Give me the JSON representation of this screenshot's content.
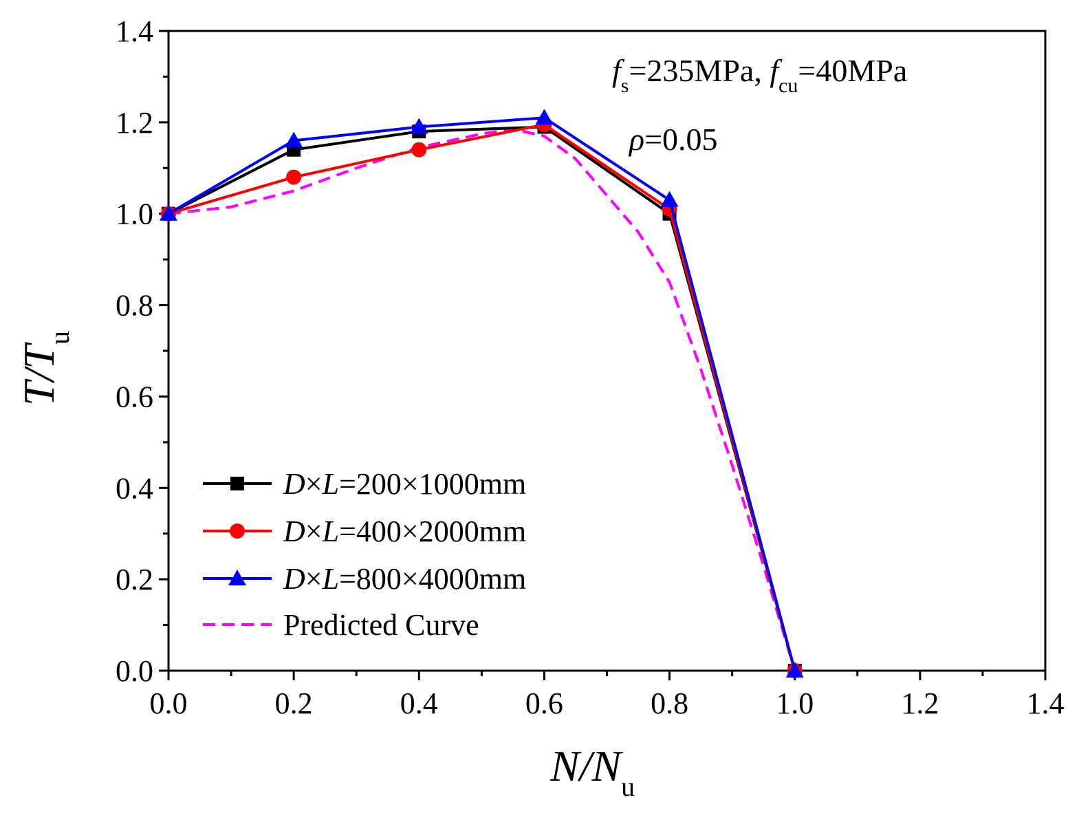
{
  "chart_data": {
    "type": "line",
    "x_axis": {
      "label_main": "N/N",
      "label_sub": "u",
      "range": [
        0,
        1.4
      ],
      "ticks": [
        "0.0",
        "0.2",
        "0.4",
        "0.6",
        "0.8",
        "1.0",
        "1.2",
        "1.4"
      ],
      "tick_values": [
        0,
        0.2,
        0.4,
        0.6,
        0.8,
        1.0,
        1.2,
        1.4
      ],
      "minor_step": 0.1
    },
    "y_axis": {
      "label_main": "T/T",
      "label_sub": "u",
      "range": [
        0,
        1.4
      ],
      "ticks": [
        "0.0",
        "0.2",
        "0.4",
        "0.6",
        "0.8",
        "1.0",
        "1.2",
        "1.4"
      ],
      "tick_values": [
        0,
        0.2,
        0.4,
        0.6,
        0.8,
        1.0,
        1.2,
        1.4
      ],
      "minor_step": 0.1
    },
    "grid": false,
    "legend_position": "bottom-left",
    "annotations": {
      "line1": {
        "f1": "f",
        "s1": "s",
        "eq1": "=235MPa, ",
        "f2": "f",
        "s2": "cu",
        "eq2": "=40MPa"
      },
      "line2": {
        "rho": "ρ",
        "eq": "=0.05"
      }
    },
    "series": [
      {
        "legend_italic_D": "D",
        "legend_times": "×",
        "legend_italic_L": "L",
        "legend_rest": "=200×1000mm",
        "color": "#000000",
        "marker": "square",
        "dash": false,
        "x": [
          0,
          0.2,
          0.4,
          0.6,
          0.8,
          1.0
        ],
        "y": [
          1.0,
          1.14,
          1.18,
          1.19,
          1.0,
          0.0
        ]
      },
      {
        "legend_italic_D": "D",
        "legend_times": "×",
        "legend_italic_L": "L",
        "legend_rest": "=400×2000mm",
        "color": "#ff0000",
        "marker": "circle",
        "dash": false,
        "x": [
          0,
          0.2,
          0.4,
          0.6,
          0.8,
          1.0
        ],
        "y": [
          1.0,
          1.08,
          1.14,
          1.195,
          1.01,
          0.0
        ]
      },
      {
        "legend_italic_D": "D",
        "legend_times": "×",
        "legend_italic_L": "L",
        "legend_rest": "=800×4000mm",
        "color": "#0000ff",
        "marker": "triangle",
        "dash": false,
        "x": [
          0,
          0.2,
          0.4,
          0.6,
          0.8,
          1.0
        ],
        "y": [
          1.0,
          1.16,
          1.19,
          1.21,
          1.03,
          0.0
        ]
      },
      {
        "legend_label": "Predicted Curve",
        "color": "#ff00ff",
        "marker": "none",
        "dash": true,
        "x": [
          0,
          0.1,
          0.2,
          0.3,
          0.4,
          0.5,
          0.55,
          0.6,
          0.65,
          0.7,
          0.75,
          0.8,
          0.85,
          0.9,
          0.95,
          1.0
        ],
        "y": [
          1.0,
          1.015,
          1.05,
          1.1,
          1.145,
          1.175,
          1.185,
          1.17,
          1.12,
          1.04,
          0.96,
          0.85,
          0.66,
          0.45,
          0.23,
          0.0
        ]
      }
    ]
  }
}
